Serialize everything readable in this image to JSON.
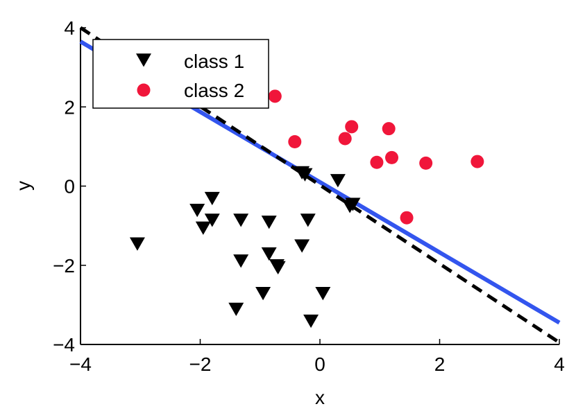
{
  "colors": {
    "class1": "#000000",
    "class2": "#f0163a",
    "solid_line": "#3355ee",
    "dashed_line": "#000000",
    "axis": "#000000"
  },
  "chart_data": {
    "type": "scatter",
    "title": "",
    "xlabel": "x",
    "ylabel": "y",
    "xlim": [
      -4,
      4
    ],
    "ylim": [
      -4,
      4
    ],
    "xticks": [
      -4,
      -2,
      0,
      2,
      4
    ],
    "yticks": [
      -4,
      -2,
      0,
      2,
      4
    ],
    "xtick_labels": [
      "−4",
      "−2",
      "0",
      "2",
      "4"
    ],
    "ytick_labels": [
      "−4",
      "−2",
      "0",
      "2",
      "4"
    ],
    "grid": false,
    "legend_position": "top-left",
    "series": [
      {
        "name": "class 1",
        "marker": "triangle-down",
        "color": "#000000",
        "points": [
          [
            -3.05,
            -1.45
          ],
          [
            -2.05,
            -0.6
          ],
          [
            -1.95,
            -1.05
          ],
          [
            -1.8,
            -0.3
          ],
          [
            -1.8,
            -0.85
          ],
          [
            -1.32,
            -0.85
          ],
          [
            -1.32,
            -1.88
          ],
          [
            -1.4,
            -3.1
          ],
          [
            -0.85,
            -0.9
          ],
          [
            -0.85,
            -1.7
          ],
          [
            -0.72,
            -2.0
          ],
          [
            -0.7,
            -2.05
          ],
          [
            -0.95,
            -2.7
          ],
          [
            -0.3,
            -1.5
          ],
          [
            -0.2,
            -0.85
          ],
          [
            -0.15,
            -3.4
          ],
          [
            -0.3,
            0.35
          ],
          [
            -0.25,
            0.3
          ],
          [
            0.05,
            -2.7
          ],
          [
            0.3,
            0.15
          ],
          [
            0.5,
            -0.5
          ],
          [
            0.55,
            -0.45
          ]
        ]
      },
      {
        "name": "class 2",
        "marker": "circle",
        "color": "#f0163a",
        "points": [
          [
            -0.75,
            2.27
          ],
          [
            -0.42,
            1.12
          ],
          [
            0.42,
            1.2
          ],
          [
            0.53,
            1.5
          ],
          [
            0.95,
            0.6
          ],
          [
            1.15,
            1.45
          ],
          [
            1.2,
            0.72
          ],
          [
            1.45,
            -0.8
          ],
          [
            1.77,
            0.58
          ],
          [
            2.63,
            0.62
          ]
        ]
      }
    ],
    "lines": [
      {
        "style": "solid",
        "color": "#3355ee",
        "x": [
          -4,
          4
        ],
        "y": [
          3.65,
          -3.45
        ]
      },
      {
        "style": "dashed",
        "color": "#000000",
        "x": [
          -4,
          4
        ],
        "y": [
          4.0,
          -3.95
        ]
      }
    ],
    "legend": {
      "entries": [
        {
          "label": "class 1",
          "marker": "triangle-down",
          "color": "#000000"
        },
        {
          "label": "class 2",
          "marker": "circle",
          "color": "#f0163a"
        }
      ]
    }
  }
}
